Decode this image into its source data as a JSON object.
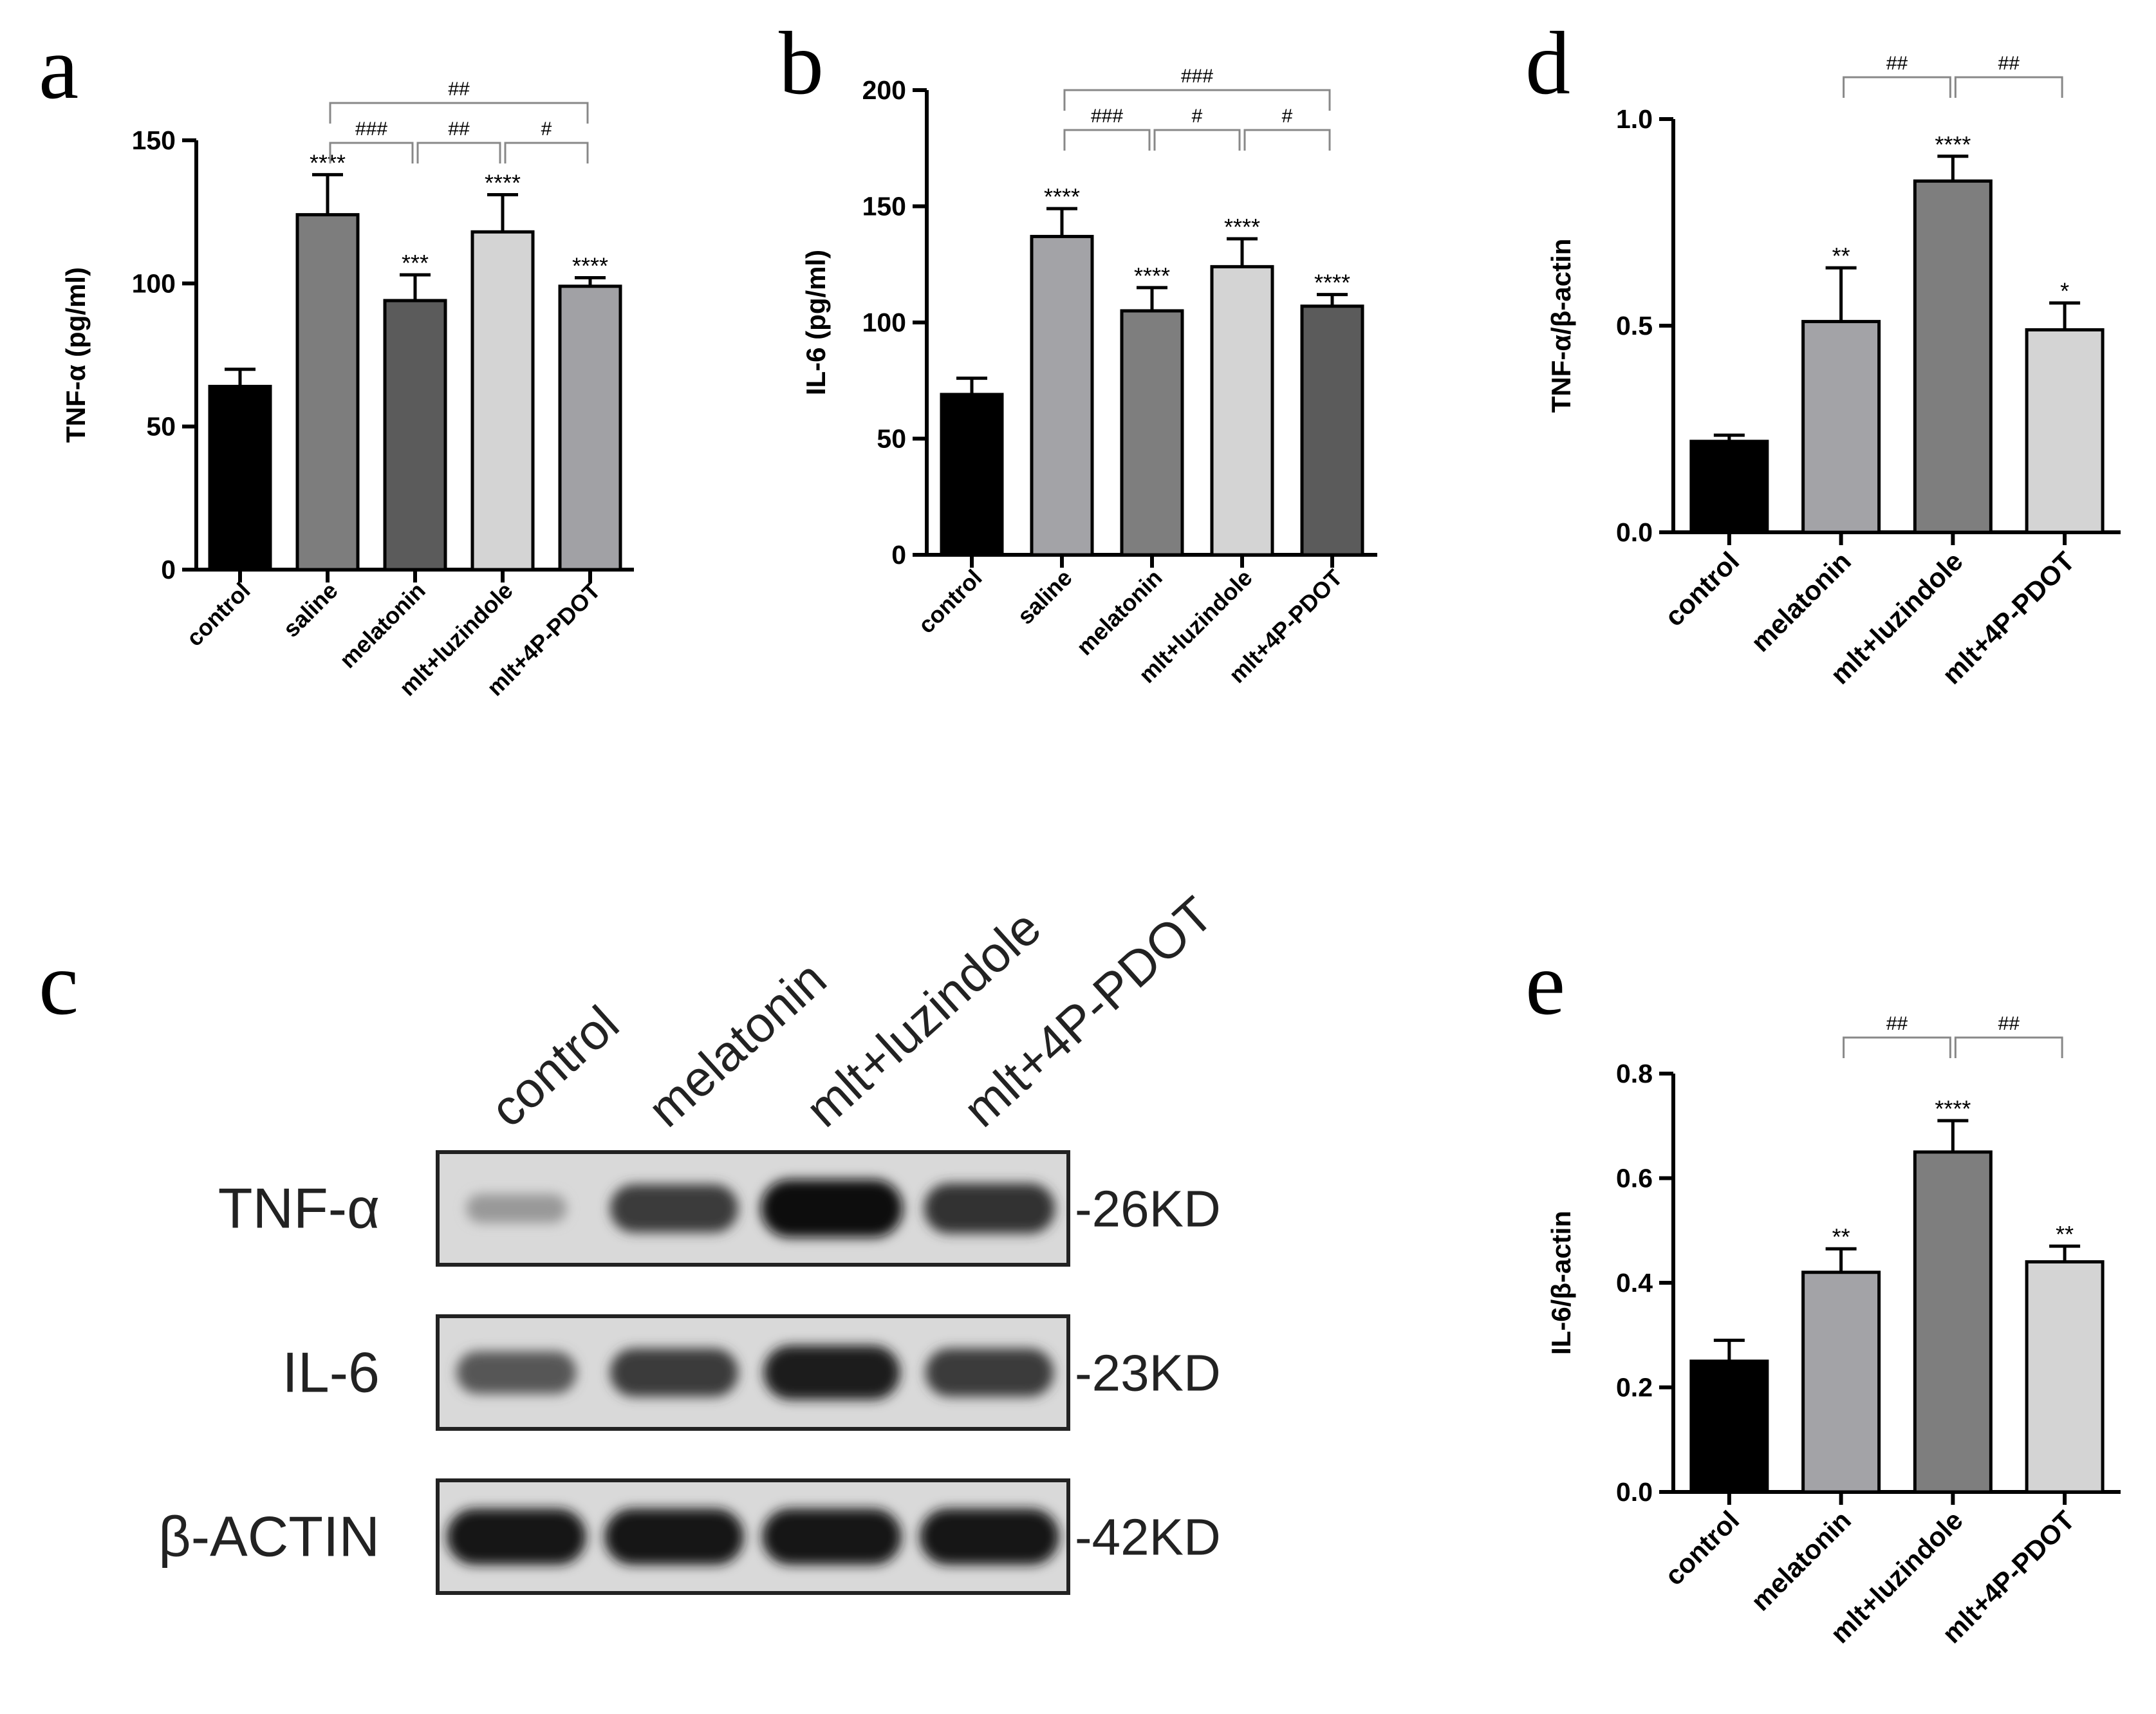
{
  "chart_data": [
    {
      "type": "bar",
      "panel": "a",
      "ylabel": "TNF-α (pg/ml)",
      "ylim": [
        0,
        150
      ],
      "yticks": [
        "0",
        "50",
        "100",
        "150"
      ],
      "categories": [
        "control",
        "saline",
        "melatonin",
        "mlt+luzindole",
        "mlt+4P-PDOT"
      ],
      "values": [
        64,
        124,
        94,
        118,
        99
      ],
      "errors": [
        6,
        14,
        9,
        13,
        3
      ],
      "colors": [
        "#000000",
        "#7d7d7d",
        "#5b5b5b",
        "#d4d4d4",
        "#a1a1a5"
      ],
      "labels": [
        "",
        "****",
        "***",
        "****",
        "****"
      ],
      "brackets": [
        {
          "from": 1,
          "to": 4,
          "label": "##"
        },
        {
          "from": 1,
          "to": 2,
          "label": "###"
        },
        {
          "from": 2,
          "to": 3,
          "label": "##"
        },
        {
          "from": 3,
          "to": 4,
          "label": "#"
        }
      ]
    },
    {
      "type": "bar",
      "panel": "b",
      "ylabel": "IL-6 (pg/ml)",
      "ylim": [
        0,
        200
      ],
      "yticks": [
        "0",
        "50",
        "100",
        "150",
        "200"
      ],
      "categories": [
        "control",
        "saline",
        "melatonin",
        "mlt+luzindole",
        "mlt+4P-PDOT"
      ],
      "values": [
        69,
        137,
        105,
        124,
        107
      ],
      "errors": [
        7,
        12,
        10,
        12,
        5
      ],
      "colors": [
        "#000000",
        "#a3a3a7",
        "#7e7e7e",
        "#d4d4d4",
        "#5b5b5b"
      ],
      "labels": [
        "",
        "****",
        "****",
        "****",
        "****"
      ],
      "brackets": [
        {
          "from": 1,
          "to": 4,
          "label": "###"
        },
        {
          "from": 1,
          "to": 2,
          "label": "###"
        },
        {
          "from": 2,
          "to": 3,
          "label": "#"
        },
        {
          "from": 3,
          "to": 4,
          "label": "#"
        }
      ]
    },
    {
      "type": "bar",
      "panel": "d",
      "ylabel": "TNF-α/β-actin",
      "ylim": [
        0,
        1.0
      ],
      "yticks": [
        "0.0",
        "0.5",
        "1.0"
      ],
      "categories": [
        "control",
        "melatonin",
        "mlt+luzindole",
        "mlt+4P-PDOT"
      ],
      "values": [
        0.22,
        0.51,
        0.85,
        0.49
      ],
      "errors": [
        0.015,
        0.13,
        0.06,
        0.065
      ],
      "colors": [
        "#000000",
        "#a3a3a7",
        "#7e7e7e",
        "#d4d4d4"
      ],
      "labels": [
        "",
        "**",
        "****",
        "*"
      ],
      "brackets": [
        {
          "from": 1,
          "to": 2,
          "label": "##"
        },
        {
          "from": 2,
          "to": 3,
          "label": "##"
        }
      ]
    },
    {
      "type": "bar",
      "panel": "e",
      "ylabel": "IL-6/β-actin",
      "ylim": [
        0,
        0.8
      ],
      "yticks": [
        "0.0",
        "0.2",
        "0.4",
        "0.6",
        "0.8"
      ],
      "categories": [
        "control",
        "melatonin",
        "mlt+luzindole",
        "mlt+4P-PDOT"
      ],
      "values": [
        0.25,
        0.42,
        0.65,
        0.44
      ],
      "errors": [
        0.04,
        0.045,
        0.06,
        0.03
      ],
      "colors": [
        "#000000",
        "#a3a3a7",
        "#7e7e7e",
        "#d4d4d4"
      ],
      "labels": [
        "",
        "**",
        "****",
        "**"
      ],
      "brackets": [
        {
          "from": 1,
          "to": 2,
          "label": "##"
        },
        {
          "from": 2,
          "to": 3,
          "label": "##"
        }
      ]
    }
  ],
  "blot": {
    "panel": "c",
    "lanes": [
      "control",
      "melatonin",
      "mlt+luzindole",
      "mlt+4P-PDOT"
    ],
    "rows": [
      {
        "label": "TNF-α",
        "kd": "-26KD",
        "intensities": [
          0.25,
          0.75,
          1.0,
          0.8
        ]
      },
      {
        "label": "IL-6",
        "kd": "-23KD",
        "intensities": [
          0.6,
          0.75,
          0.9,
          0.75
        ]
      },
      {
        "label": "β-ACTIN",
        "kd": "-42KD",
        "intensities": [
          0.95,
          0.95,
          0.95,
          0.95
        ]
      }
    ]
  }
}
